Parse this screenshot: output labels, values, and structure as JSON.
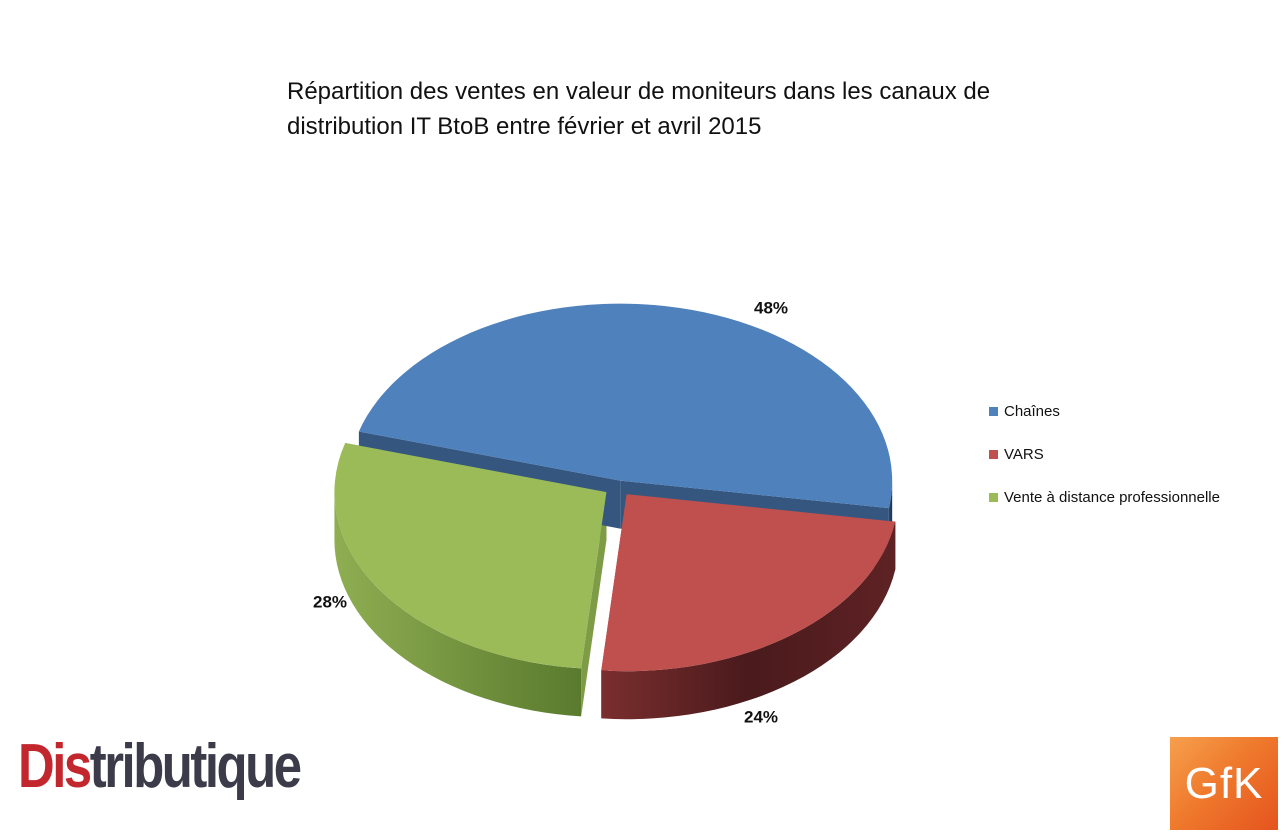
{
  "chart_data": {
    "type": "pie",
    "title_lines": [
      "Répartition des ventes en valeur de moniteurs dans les canaux de",
      "distribution IT BtoB entre février et avril 2015"
    ],
    "slices": [
      {
        "label": "Chaînes",
        "value": 48,
        "display": "48%",
        "color": "#4f81bd",
        "side_dark": "#1f3a5c",
        "side_light": "#35577f"
      },
      {
        "label": "VARS",
        "value": 24,
        "display": "24%",
        "color": "#c0504d",
        "side_dark": "#4a1a1c",
        "side_light": "#7a2e2e"
      },
      {
        "label": "Vente à distance professionnelle",
        "value": 28,
        "display": "28%",
        "color": "#9bbb59",
        "side_dark": "#5a7a2e",
        "side_light": "#7e9c45"
      }
    ],
    "legend_position": "right",
    "style": "3d-exploded"
  },
  "logos": {
    "distributique": {
      "text_red": "Dis",
      "text_dark": "tributique"
    },
    "gfk": {
      "text": "GfK"
    }
  }
}
